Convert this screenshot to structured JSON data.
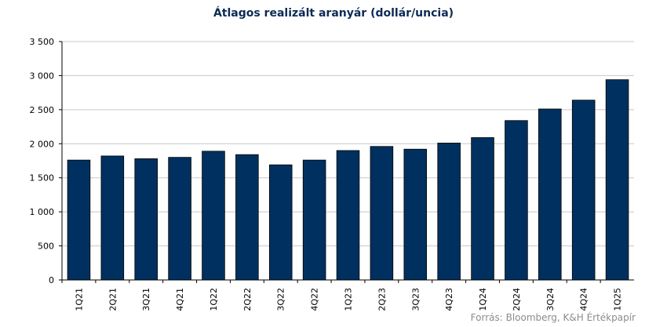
{
  "chart_data": {
    "type": "bar",
    "title": "Átlagos realizált aranyár (dollár/uncia)",
    "xlabel": "",
    "ylabel": "",
    "categories": [
      "1Q21",
      "2Q21",
      "3Q21",
      "4Q21",
      "1Q22",
      "2Q22",
      "3Q22",
      "4Q22",
      "1Q23",
      "2Q23",
      "3Q23",
      "4Q23",
      "1Q24",
      "2Q24",
      "3Q24",
      "4Q24",
      "1Q25"
    ],
    "values": [
      1760,
      1820,
      1780,
      1800,
      1890,
      1840,
      1690,
      1760,
      1900,
      1960,
      1920,
      2010,
      2090,
      2340,
      2510,
      2640,
      2940
    ],
    "ylim": [
      0,
      3500
    ],
    "yticks": [
      0,
      500,
      1000,
      1500,
      2000,
      2500,
      3000,
      3500
    ],
    "ytick_labels": [
      "0",
      "500",
      "1 000",
      "1 500",
      "2 000",
      "2 500",
      "3 000",
      "3 500"
    ],
    "grid": true,
    "legend": "none",
    "bar_color": "#00305f",
    "source": "Forrás: Bloomberg,  K&H Értékpapír"
  }
}
